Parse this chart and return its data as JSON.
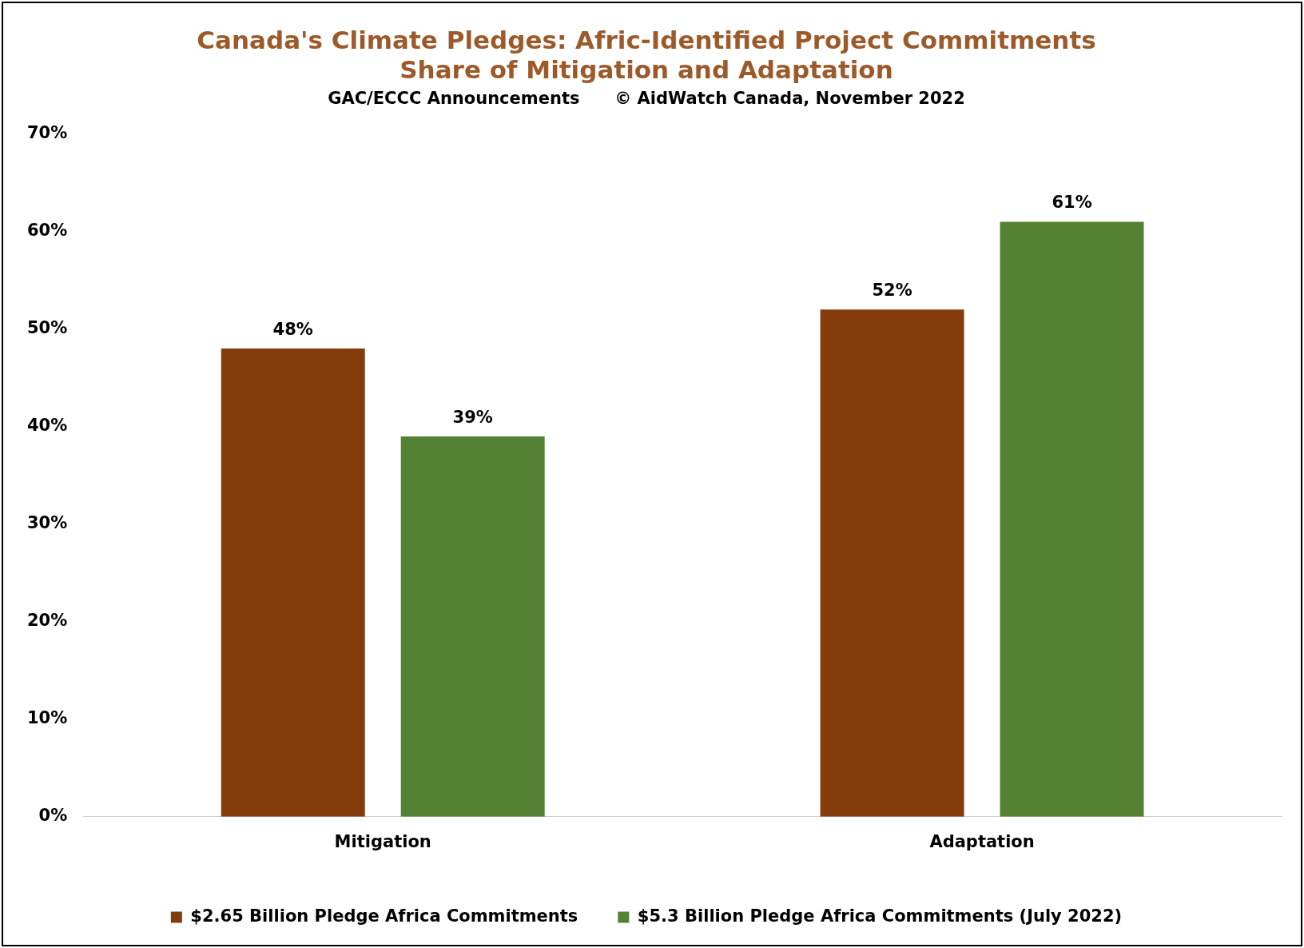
{
  "chart_data": {
    "type": "bar",
    "title": "Canada's Climate Pledges: Afric-Identified Project Commitments\nShare of Mitigation and Adaptation",
    "subtitle": "GAC/ECCC Announcements      © AidWatch Canada, November 2022",
    "categories": [
      "Mitigation",
      "Adaptation"
    ],
    "series": [
      {
        "name": "$2.65 Billion Pledge Africa Commitments",
        "color": "#843c0c",
        "values": [
          48,
          52
        ]
      },
      {
        "name": "$5.3 Billion Pledge Africa Commitments (July 2022)",
        "color": "#548235",
        "values": [
          39,
          61
        ]
      }
    ],
    "ylim": [
      0,
      70
    ],
    "yticks": [
      {
        "value": 0,
        "label": "0%"
      },
      {
        "value": 10,
        "label": "10%"
      },
      {
        "value": 20,
        "label": "20%"
      },
      {
        "value": 30,
        "label": "30%"
      },
      {
        "value": 40,
        "label": "40%"
      },
      {
        "value": 50,
        "label": "50%"
      },
      {
        "value": 60,
        "label": "60%"
      },
      {
        "value": 70,
        "label": "70%"
      }
    ],
    "value_labels": [
      [
        "48%",
        "52%"
      ],
      [
        "39%",
        "61%"
      ]
    ],
    "grid": false,
    "legend": "bottom"
  }
}
